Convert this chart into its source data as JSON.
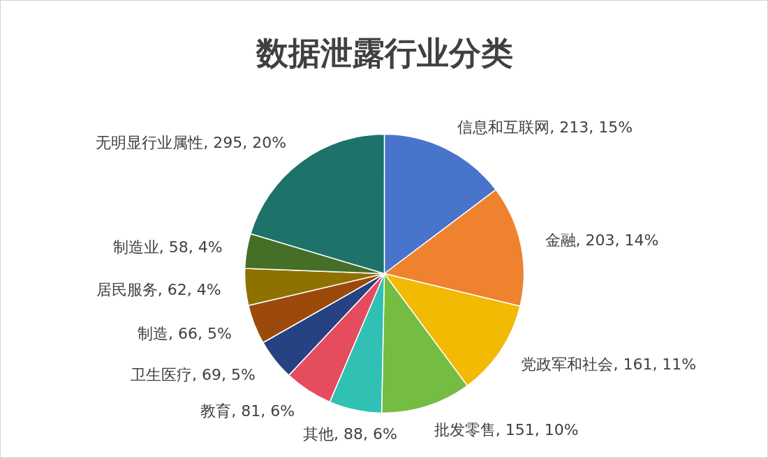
{
  "chart_data": {
    "type": "pie",
    "title": "数据泄露行业分类",
    "categories": [
      "信息和互联网",
      "金融",
      "党政军和社会",
      "批发零售",
      "其他",
      "教育",
      "卫生医疗",
      "制造",
      "居民服务",
      "制造业",
      "无明显行业属性"
    ],
    "values": [
      213,
      203,
      161,
      151,
      88,
      81,
      69,
      66,
      62,
      58,
      295
    ],
    "colors": [
      "#4874cb",
      "#ee822f",
      "#f2ba02",
      "#75bd42",
      "#30c0b4",
      "#e54c5e",
      "#264283",
      "#9c4a0c",
      "#8f7100",
      "#456f27",
      "#1d7369"
    ],
    "value_labels": [
      "213, 15%",
      "203, 14%",
      "161, 11%",
      "151, 10%",
      "88, 6%",
      "81, 6%",
      "69, 5%",
      "66, 5%",
      "62, 4%",
      "58, 4%",
      "295, 20%"
    ]
  }
}
